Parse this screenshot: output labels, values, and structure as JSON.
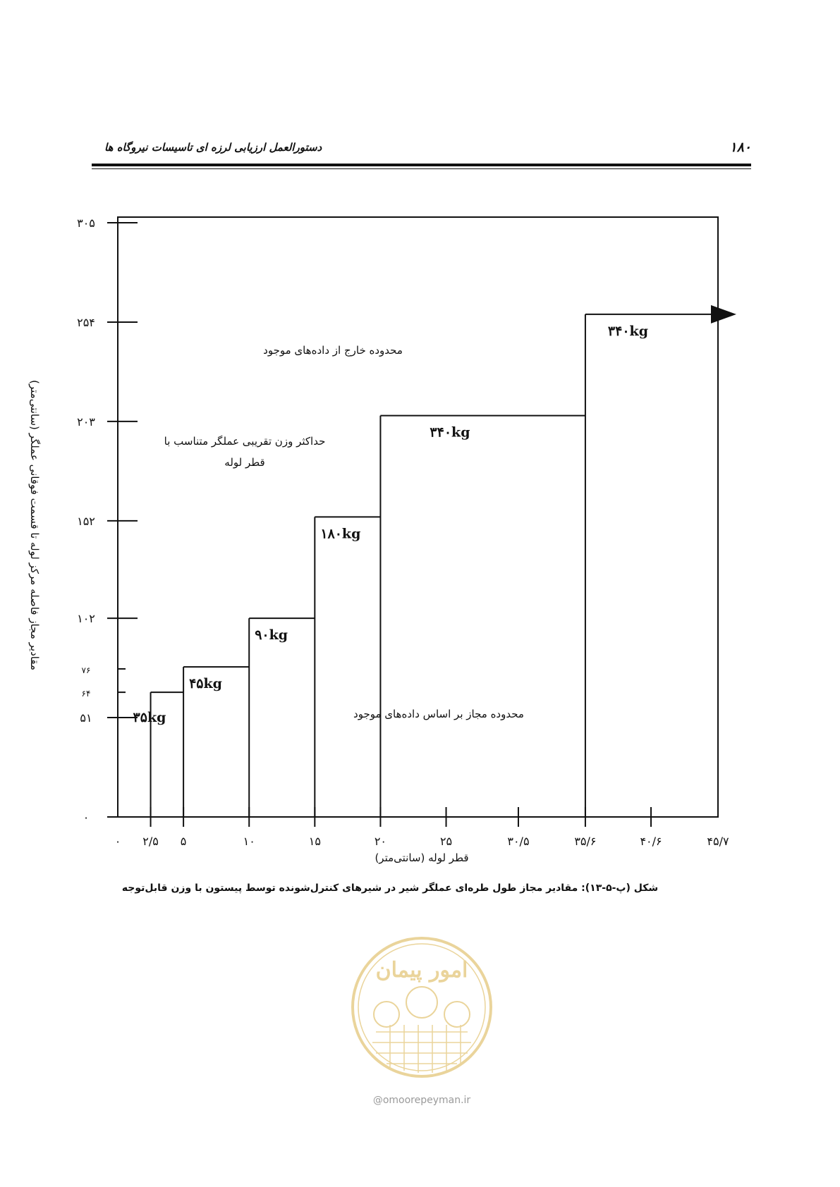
{
  "header": {
    "page_number": "۱۸۰",
    "title": "دستورالعمل ارزیابی لرزه ای تاسیسات نیروگاه ها"
  },
  "chart_data": {
    "type": "step",
    "xlabel": "قطر لوله (سانتی‌متر)",
    "ylabel": "مقادیر مجاز فاصله مرکز لوله تا قسمت فوقانی عملگر (سانتی‌متر)",
    "x_ticks": [
      {
        "value": 0,
        "label": "۰"
      },
      {
        "value": 2.5,
        "label": "۲/۵"
      },
      {
        "value": 5,
        "label": "۵"
      },
      {
        "value": 10,
        "label": "۱۰"
      },
      {
        "value": 15,
        "label": "۱۵"
      },
      {
        "value": 20,
        "label": "۲۰"
      },
      {
        "value": 25,
        "label": "۲۵"
      },
      {
        "value": 30.5,
        "label": "۳۰/۵"
      },
      {
        "value": 35.6,
        "label": "۳۵/۶"
      },
      {
        "value": 40.6,
        "label": "۴۰/۶"
      },
      {
        "value": 45.7,
        "label": "۴۵/۷"
      }
    ],
    "y_ticks": [
      {
        "value": 0,
        "label": "۰"
      },
      {
        "value": 51,
        "label": "۵۱"
      },
      {
        "value": 64,
        "label": "۶۴"
      },
      {
        "value": 76,
        "label": "۷۶"
      },
      {
        "value": 102,
        "label": "۱۰۲"
      },
      {
        "value": 152,
        "label": "۱۵۲"
      },
      {
        "value": 203,
        "label": "۲۰۳"
      },
      {
        "value": 254,
        "label": "۲۵۴"
      },
      {
        "value": 305,
        "label": "۳۰۵"
      }
    ],
    "steps": [
      {
        "x0": 2.5,
        "x1": 5,
        "y": 64,
        "label": "۳۵kg"
      },
      {
        "x0": 5,
        "x1": 10,
        "y": 77,
        "label": "۴۵kg"
      },
      {
        "x0": 10,
        "x1": 15,
        "y": 102,
        "label": "۹۰kg"
      },
      {
        "x0": 15,
        "x1": 20,
        "y": 154,
        "label": "۱۸۰kg"
      },
      {
        "x0": 20,
        "x1": 35.6,
        "y": 206,
        "label": "۳۴۰kg"
      },
      {
        "x0": 35.6,
        "x1": 45.7,
        "y": 258,
        "label": "۳۴۰kg"
      }
    ],
    "annotations": {
      "outside_range": "محدوده خارج از داده‌های موجود",
      "max_weight_line1": "حداکثر وزن تقریبی عملگر متناسب با",
      "max_weight_line2": "قطر لوله",
      "allowed_range": "محدوده مجاز بر اساس داده‌های موجود"
    },
    "arrow": "right"
  },
  "caption": "شکل (پ-۵-۱۳): مقادیر مجاز طول طره‌ای عملگر شیر در شیرهای  کنترل‌شونده توسط پیستون با وزن قابل‌توجه",
  "watermark": {
    "logo_text": "امور پیمان",
    "url": "@omoorepeyman.ir",
    "color": "#d9b24a"
  }
}
